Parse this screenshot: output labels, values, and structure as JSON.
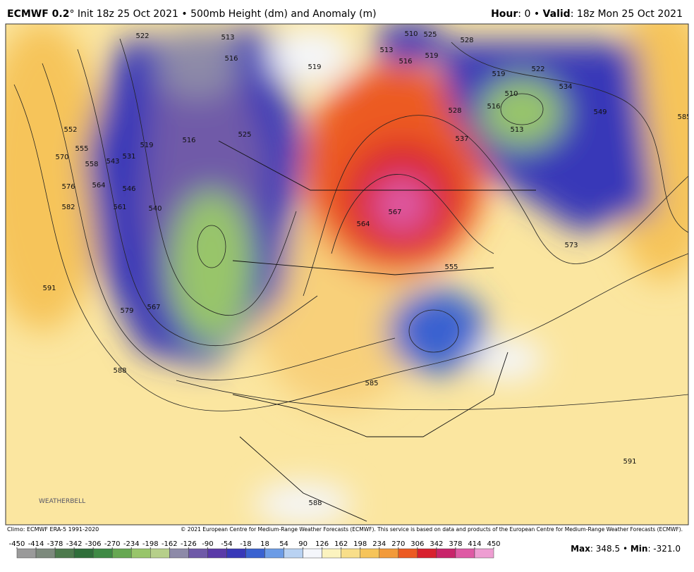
{
  "header": {
    "model": "ECMWF 0.2",
    "degree": "°",
    "init": "Init 18z 25 Oct 2021",
    "separator": "•",
    "product": "500mb Height (dm) and Anomaly (m)",
    "hour_label": "Hour",
    "hour": ": 0",
    "valid_label": "Valid",
    "valid": ": 18z Mon 25 Oct 2021"
  },
  "map": {
    "contour_labels": [
      522,
      513,
      516,
      519,
      510,
      525,
      513,
      516,
      519,
      528,
      519,
      522,
      534,
      510,
      516,
      513,
      549,
      585,
      528,
      537,
      525,
      552,
      555,
      558,
      570,
      576,
      564,
      582,
      543,
      531,
      519,
      516,
      546,
      561,
      540,
      567,
      564,
      573,
      555,
      591,
      579,
      567,
      588,
      585,
      591,
      588
    ],
    "logo": "WEATHERBELL"
  },
  "footer": {
    "climo": "Climo: ECMWF ERA-5 1991-2020",
    "copyright": "© 2021 European Centre for Medium-Range Weather Forecasts (ECMWF). This service is based on data and products of the European Centre for Medium-Range Weather Forecasts (ECMWF).",
    "colorbar": {
      "ticks": [
        -450,
        -414,
        -378,
        -342,
        -306,
        -270,
        -234,
        -198,
        -162,
        -126,
        -90,
        -54,
        -18,
        18,
        54,
        90,
        126,
        162,
        198,
        234,
        270,
        306,
        342,
        378,
        414,
        450
      ],
      "colors": [
        "#9a9a9a",
        "#7d8a7d",
        "#4d7a4d",
        "#2f6e3a",
        "#3f8a45",
        "#67a852",
        "#98c56a",
        "#b6cf8a",
        "#8d8aa8",
        "#6f5aa8",
        "#5a3aa8",
        "#3838b8",
        "#3a62d0",
        "#6c9ce6",
        "#b9d2f2",
        "#f4f6fb",
        "#fbf3bf",
        "#f8de8a",
        "#f6c45a",
        "#f29a3a",
        "#ec5a22",
        "#d8202e",
        "#c8246a",
        "#de5aa4",
        "#ee9ed2"
      ]
    },
    "max_label": "Max",
    "max": ": 348.5",
    "min_label": "Min",
    "min": ": -321.0"
  }
}
